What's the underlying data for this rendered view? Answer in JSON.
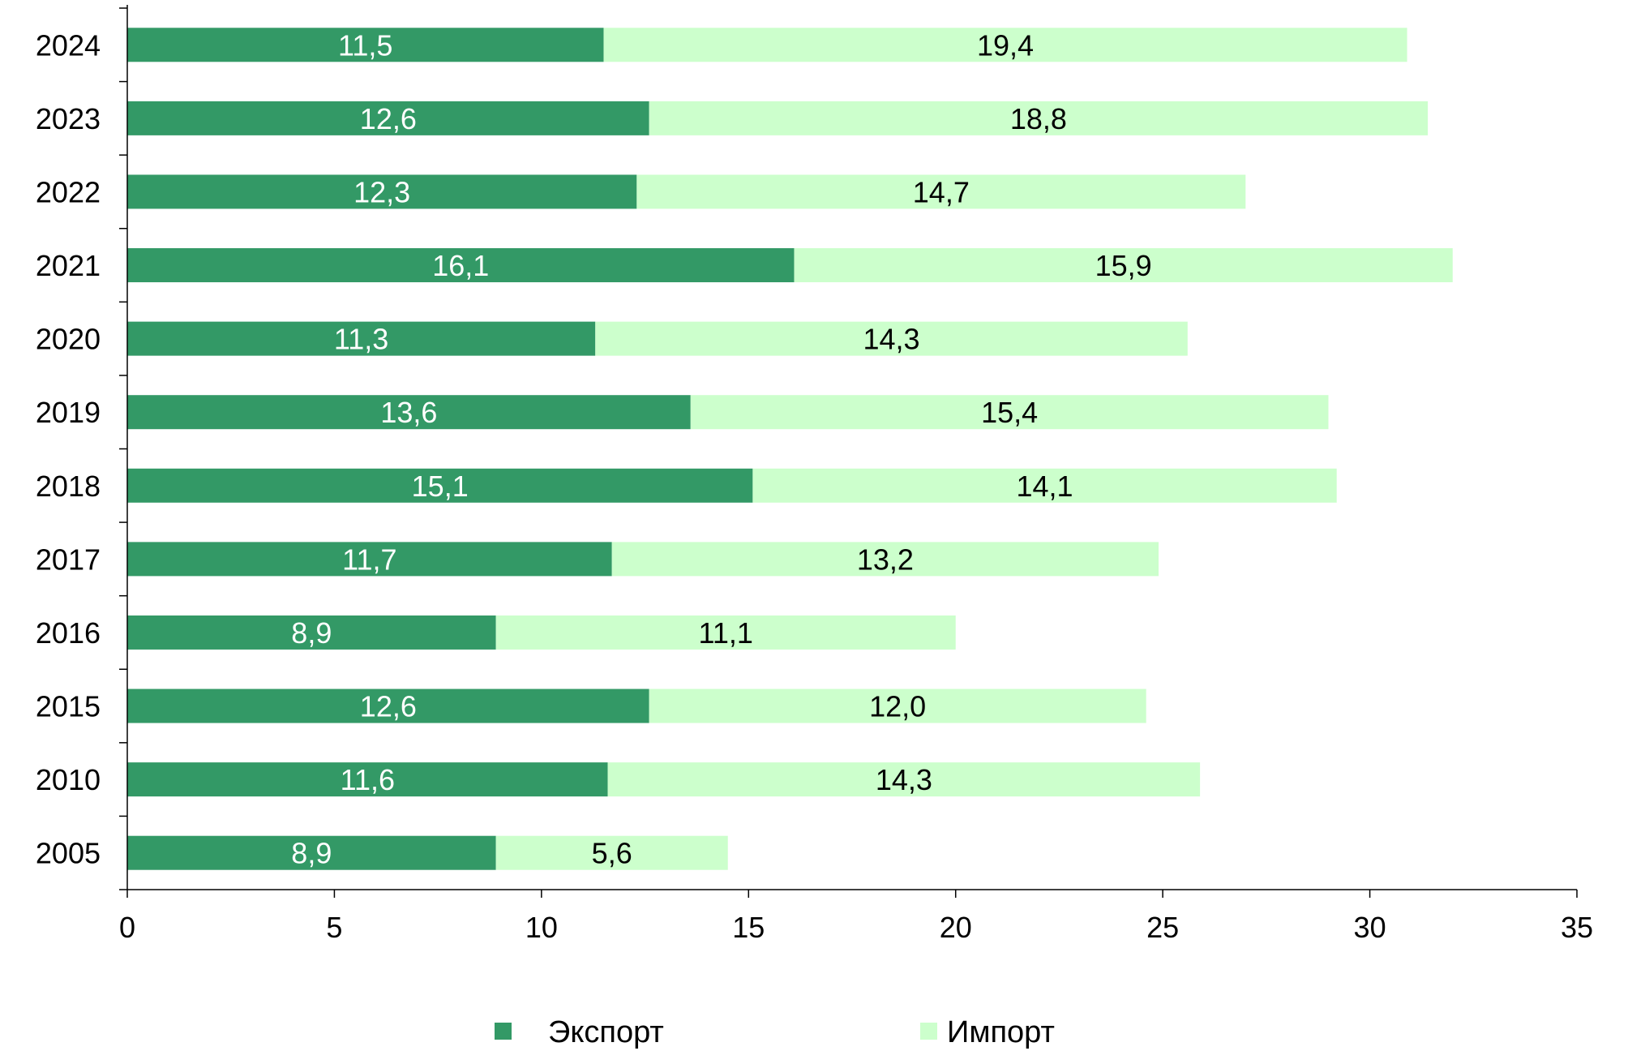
{
  "chart_data": {
    "type": "bar",
    "orientation": "horizontal",
    "stacked": true,
    "categories": [
      "2024",
      "2023",
      "2022",
      "2021",
      "2020",
      "2019",
      "2018",
      "2017",
      "2016",
      "2015",
      "2010",
      "2005"
    ],
    "series": [
      {
        "name": "Экспорт",
        "color": "#339966",
        "values": [
          11.5,
          12.6,
          12.3,
          16.1,
          11.3,
          13.6,
          15.1,
          11.7,
          8.9,
          12.6,
          11.6,
          8.9
        ],
        "labels": [
          "11,5",
          "12,6",
          "12,3",
          "16,1",
          "11,3",
          "13,6",
          "15,1",
          "11,7",
          "8,9",
          "12,6",
          "11,6",
          "8,9"
        ]
      },
      {
        "name": "Импорт",
        "color": "#ccffcc",
        "values": [
          19.4,
          18.8,
          14.7,
          15.9,
          14.3,
          15.4,
          14.1,
          13.2,
          11.1,
          12.0,
          14.3,
          5.6
        ],
        "labels": [
          "19,4",
          "18,8",
          "14,7",
          "15,9",
          "14,3",
          "15,4",
          "14,1",
          "13,2",
          "11,1",
          "12,0",
          "14,3",
          "5,6"
        ]
      }
    ],
    "xlim": [
      0,
      35
    ],
    "xticks": [
      "0",
      "5",
      "10",
      "15",
      "20",
      "25",
      "30",
      "35"
    ],
    "legend_position": "bottom",
    "grid": false
  }
}
